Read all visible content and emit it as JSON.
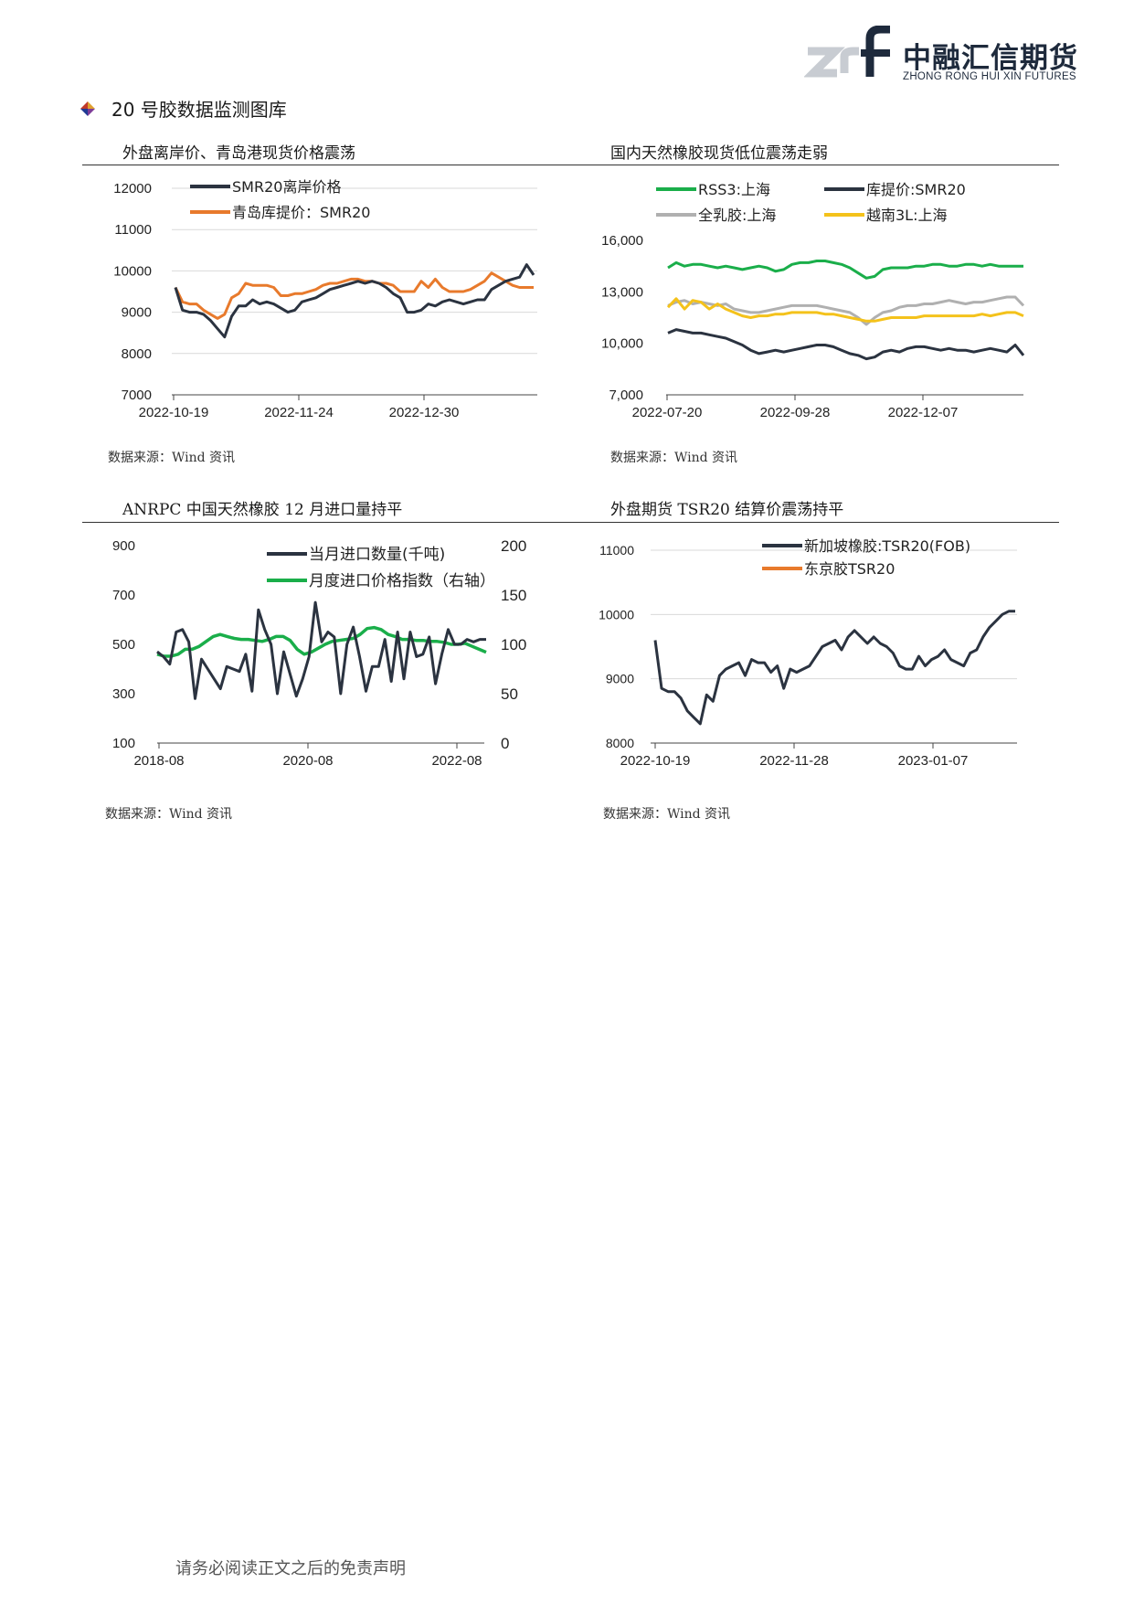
{
  "header": {
    "logo_cn": "中融汇信期货",
    "logo_en": "ZHONG RONG HUI XIN FUTURES"
  },
  "section": {
    "title": "20 号胶数据监测图库"
  },
  "colors": {
    "navy": "#2b3340",
    "orange": "#e87a2c",
    "green": "#1aae4a",
    "gray": "#b0b0b0",
    "yellow": "#f4c21b"
  },
  "charts": [
    {
      "title": "外盘离岸价、青岛港现货价格震荡",
      "source": "数据来源：Wind 资讯"
    },
    {
      "title": "国内天然橡胶现货低位震荡走弱",
      "source": "数据来源：Wind 资讯"
    },
    {
      "title": "ANRPC 中国天然橡胶 12 月进口量持平",
      "source": "数据来源：Wind 资讯"
    },
    {
      "title": "外盘期货 TSR20 结算价震荡持平",
      "source": "数据来源：Wind 资讯"
    }
  ],
  "footer": {
    "text": "请务必阅读正文之后的免责声明"
  },
  "chart_data": [
    {
      "type": "line",
      "title": "外盘离岸价、青岛港现货价格震荡",
      "x_ticks": [
        "2022-10-19",
        "2022-11-24",
        "2022-12-30"
      ],
      "y_ticks": [
        "7000",
        "8000",
        "9000",
        "10000",
        "11000",
        "12000"
      ],
      "ylim": [
        7000,
        12000
      ],
      "grid": true,
      "legend_position": "top-left",
      "series": [
        {
          "name": "SMR20离岸价格",
          "color": "#2b3340",
          "values": [
            9600,
            9050,
            9000,
            9000,
            8950,
            8800,
            8600,
            8400,
            8900,
            9150,
            9150,
            9300,
            9200,
            9250,
            9200,
            9100,
            9000,
            9050,
            9250,
            9300,
            9350,
            9450,
            9550,
            9600,
            9650,
            9700,
            9750,
            9700,
            9750,
            9700,
            9600,
            9450,
            9350,
            9000,
            9000,
            9050,
            9200,
            9150,
            9250,
            9300,
            9250,
            9200,
            9250,
            9300,
            9300,
            9550,
            9650,
            9750,
            9800,
            9850,
            10150,
            9900
          ]
        },
        {
          "name": "青岛库提价：SMR20",
          "color": "#e87a2c",
          "values": [
            9600,
            9250,
            9200,
            9200,
            9050,
            8950,
            8850,
            8950,
            9350,
            9450,
            9700,
            9650,
            9650,
            9650,
            9600,
            9400,
            9400,
            9450,
            9450,
            9500,
            9550,
            9650,
            9700,
            9700,
            9750,
            9800,
            9800,
            9750,
            9750,
            9700,
            9700,
            9650,
            9500,
            9500,
            9500,
            9750,
            9600,
            9800,
            9600,
            9500,
            9500,
            9500,
            9550,
            9650,
            9750,
            9950,
            9850,
            9750,
            9650,
            9600,
            9600,
            9600
          ]
        }
      ]
    },
    {
      "type": "line",
      "title": "国内天然橡胶现货低位震荡走弱",
      "x_ticks": [
        "2022-07-20",
        "2022-09-28",
        "2022-12-07"
      ],
      "y_ticks": [
        "7,000",
        "10,000",
        "13,000",
        "16,000"
      ],
      "ylim": [
        7000,
        16000
      ],
      "grid": false,
      "legend_position": "top",
      "series": [
        {
          "name": "RSS3:上海",
          "color": "#1aae4a",
          "values": [
            14400,
            14700,
            14500,
            14600,
            14600,
            14500,
            14400,
            14500,
            14400,
            14300,
            14400,
            14500,
            14400,
            14200,
            14300,
            14600,
            14700,
            14700,
            14800,
            14800,
            14700,
            14600,
            14400,
            14100,
            13800,
            13900,
            14300,
            14400,
            14400,
            14400,
            14500,
            14500,
            14600,
            14600,
            14500,
            14500,
            14600,
            14600,
            14500,
            14600,
            14500,
            14500,
            14500,
            14500
          ]
        },
        {
          "name": "库提价:SMR20",
          "color": "#2b3340",
          "values": [
            10600,
            10800,
            10700,
            10600,
            10600,
            10500,
            10400,
            10300,
            10100,
            9900,
            9600,
            9400,
            9500,
            9600,
            9500,
            9600,
            9700,
            9800,
            9900,
            9900,
            9800,
            9600,
            9400,
            9300,
            9100,
            9200,
            9500,
            9600,
            9500,
            9700,
            9800,
            9800,
            9700,
            9600,
            9700,
            9600,
            9600,
            9500,
            9600,
            9700,
            9600,
            9500,
            9900,
            9300
          ]
        },
        {
          "name": "全乳胶:上海",
          "color": "#b0b0b0",
          "values": [
            12200,
            12400,
            12500,
            12300,
            12400,
            12300,
            12200,
            12300,
            12000,
            11900,
            11800,
            11800,
            11900,
            12000,
            12100,
            12200,
            12200,
            12200,
            12200,
            12100,
            12000,
            11900,
            11800,
            11500,
            11100,
            11500,
            11800,
            11900,
            12100,
            12200,
            12200,
            12300,
            12300,
            12400,
            12500,
            12400,
            12300,
            12400,
            12400,
            12500,
            12600,
            12700,
            12700,
            12200
          ]
        },
        {
          "name": "越南3L:上海",
          "color": "#f4c21b",
          "values": [
            12100,
            12600,
            12000,
            12500,
            12400,
            12000,
            12300,
            12000,
            11800,
            11600,
            11500,
            11600,
            11600,
            11700,
            11700,
            11800,
            11800,
            11800,
            11800,
            11700,
            11700,
            11600,
            11500,
            11400,
            11300,
            11300,
            11400,
            11500,
            11500,
            11500,
            11500,
            11600,
            11600,
            11600,
            11600,
            11600,
            11600,
            11600,
            11700,
            11600,
            11700,
            11800,
            11800,
            11600
          ]
        }
      ]
    },
    {
      "type": "line",
      "title": "ANRPC 中国天然橡胶 12 月进口量持平",
      "x_ticks": [
        "2018-08",
        "2020-08",
        "2022-08"
      ],
      "y_ticks_left": [
        "100",
        "300",
        "500",
        "700",
        "900"
      ],
      "y_ticks_right": [
        "0",
        "50",
        "100",
        "150",
        "200"
      ],
      "ylim_left": [
        100,
        900
      ],
      "ylim_right": [
        0,
        200
      ],
      "grid": false,
      "legend_position": "top-right",
      "series": [
        {
          "name": "当月进口数量(千吨)",
          "color": "#2b3340",
          "axis": "left",
          "values": [
            470,
            450,
            420,
            550,
            560,
            510,
            280,
            440,
            400,
            360,
            320,
            410,
            400,
            390,
            460,
            310,
            640,
            560,
            500,
            300,
            470,
            380,
            290,
            360,
            450,
            670,
            510,
            550,
            530,
            300,
            500,
            570,
            450,
            310,
            410,
            410,
            520,
            350,
            550,
            360,
            550,
            450,
            460,
            530,
            340,
            460,
            560,
            500,
            500,
            520,
            510,
            520,
            520
          ]
        },
        {
          "name": "月度进口价格指数（右轴）",
          "color": "#1aae4a",
          "axis": "right",
          "values": [
            90,
            88,
            88,
            90,
            95,
            95,
            98,
            103,
            108,
            110,
            108,
            106,
            105,
            105,
            104,
            103,
            105,
            108,
            108,
            104,
            95,
            90,
            92,
            96,
            100,
            103,
            104,
            105,
            106,
            110,
            116,
            117,
            115,
            110,
            108,
            105,
            105,
            104,
            104,
            103,
            103,
            102,
            100,
            100,
            101,
            98,
            95,
            92
          ]
        }
      ]
    },
    {
      "type": "line",
      "title": "外盘期货 TSR20 结算价震荡持平",
      "x_ticks": [
        "2022-10-19",
        "2022-11-28",
        "2023-01-07"
      ],
      "y_ticks": [
        "8000",
        "9000",
        "10000",
        "11000"
      ],
      "ylim": [
        8000,
        11000
      ],
      "grid": true,
      "legend_position": "top-center",
      "series": [
        {
          "name": "新加坡橡胶:TSR20(FOB)",
          "color": "#2b3340",
          "values": [
            9600,
            8850,
            8800,
            8800,
            8700,
            8500,
            8400,
            8300,
            8750,
            8650,
            9050,
            9150,
            9200,
            9250,
            9050,
            9300,
            9250,
            9250,
            9100,
            9200,
            8850,
            9150,
            9100,
            9150,
            9200,
            9350,
            9500,
            9550,
            9600,
            9450,
            9650,
            9750,
            9650,
            9550,
            9650,
            9550,
            9500,
            9400,
            9200,
            9150,
            9150,
            9350,
            9200,
            9300,
            9350,
            9450,
            9300,
            9250,
            9200,
            9400,
            9450,
            9650,
            9800,
            9900,
            10000,
            10050,
            10050
          ]
        },
        {
          "name": "东京胶TSR20",
          "color": "#e87a2c",
          "values": []
        }
      ]
    }
  ]
}
